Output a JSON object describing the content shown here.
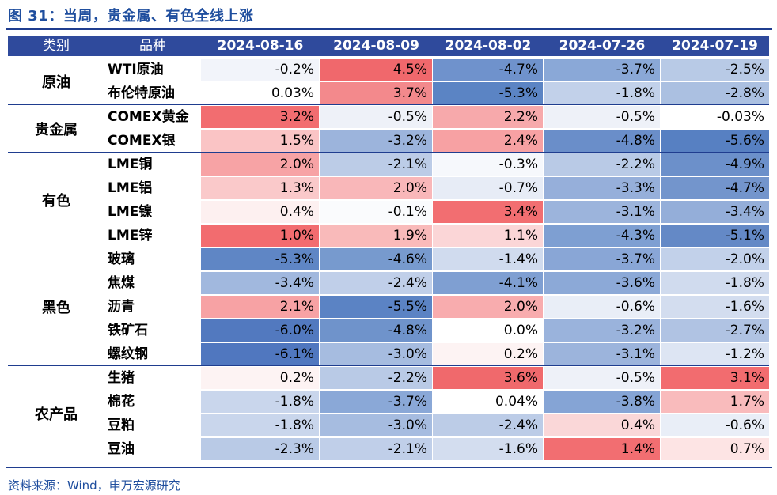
{
  "title": "图 31：当周，贵金属、有色全线上涨",
  "header": {
    "category": "类别",
    "variety": "品种",
    "dates": [
      "2024-08-16",
      "2024-08-09",
      "2024-08-02",
      "2024-07-26",
      "2024-07-19"
    ]
  },
  "groups": [
    {
      "label": "原油",
      "rows": [
        {
          "name": "WTI原油",
          "values": [
            "-0.2%",
            "4.5%",
            "-4.7%",
            "-3.7%",
            "-2.5%"
          ],
          "colors": [
            "#f2f4fa",
            "#f0686c",
            "#6f92cc",
            "#8aa8d7",
            "#b8cae6"
          ]
        },
        {
          "name": "布伦特原油",
          "values": [
            "0.03%",
            "3.7%",
            "-5.3%",
            "-1.8%",
            "-2.8%"
          ],
          "colors": [
            "#ffffff",
            "#f3898c",
            "#5b84c4",
            "#c2d1ea",
            "#abc0e1"
          ]
        }
      ]
    },
    {
      "label": "贵金属",
      "rows": [
        {
          "name": "COMEX黄金",
          "values": [
            "3.2%",
            "-0.5%",
            "2.2%",
            "-0.5%",
            "-0.03%"
          ],
          "colors": [
            "#f26d70",
            "#eef1f8",
            "#f7a9ab",
            "#eef1f8",
            "#ffffff"
          ]
        },
        {
          "name": "COMEX银",
          "values": [
            "1.5%",
            "-3.2%",
            "2.4%",
            "-4.8%",
            "-5.6%"
          ],
          "colors": [
            "#fac4c5",
            "#9cb4dc",
            "#f7a1a3",
            "#6a8ec9",
            "#5780c2"
          ]
        }
      ]
    },
    {
      "label": "有色",
      "rows": [
        {
          "name": "LME铜",
          "values": [
            "2.0%",
            "-2.1%",
            "-0.3%",
            "-2.2%",
            "-4.9%"
          ],
          "colors": [
            "#f7a3a5",
            "#bccce7",
            "#f6f8fc",
            "#b9cae6",
            "#6c90ca"
          ]
        },
        {
          "name": "LME铝",
          "values": [
            "1.3%",
            "2.0%",
            "-0.7%",
            "-3.3%",
            "-4.7%"
          ],
          "colors": [
            "#fac9ca",
            "#f9b7b9",
            "#e7ecf6",
            "#96afda",
            "#7395cc"
          ]
        },
        {
          "name": "LME镍",
          "values": [
            "0.4%",
            "-0.1%",
            "3.4%",
            "-3.1%",
            "-3.4%"
          ],
          "colors": [
            "#fdf0f0",
            "#fafbfd",
            "#f26e71",
            "#9cb4dc",
            "#94aed9"
          ]
        },
        {
          "name": "LME锌",
          "values": [
            "1.0%",
            "1.9%",
            "1.1%",
            "-4.3%",
            "-5.1%"
          ],
          "colors": [
            "#f26c6f",
            "#f9baba",
            "#fbd6d7",
            "#7e9fd2",
            "#6489c6"
          ]
        }
      ]
    },
    {
      "label": "黑色",
      "rows": [
        {
          "name": "玻璃",
          "values": [
            "-5.3%",
            "-4.6%",
            "-1.4%",
            "-3.7%",
            "-2.0%"
          ],
          "colors": [
            "#5f86c5",
            "#779ace",
            "#d0dbee",
            "#89a6d6",
            "#c2d1ea"
          ]
        },
        {
          "name": "焦煤",
          "values": [
            "-3.4%",
            "-2.4%",
            "-4.1%",
            "-3.6%",
            "-1.8%"
          ],
          "colors": [
            "#a1b8de",
            "#c0cfe9",
            "#7f9fd2",
            "#8ca9d7",
            "#d0dbee"
          ]
        },
        {
          "name": "沥青",
          "values": [
            "2.1%",
            "-5.5%",
            "2.0%",
            "-0.6%",
            "-1.6%"
          ],
          "colors": [
            "#f7a2a4",
            "#5b83c4",
            "#f8acae",
            "#e9eef7",
            "#d3ddef"
          ]
        },
        {
          "name": "铁矿石",
          "values": [
            "-6.0%",
            "-4.8%",
            "0.0%",
            "-3.2%",
            "-2.7%"
          ],
          "colors": [
            "#5279bf",
            "#6f93cb",
            "#ffffff",
            "#9ab3dc",
            "#b0c3e3"
          ]
        },
        {
          "name": "螺纹钢",
          "values": [
            "-6.1%",
            "-3.0%",
            "0.2%",
            "-3.1%",
            "-1.2%"
          ],
          "colors": [
            "#5077bf",
            "#a6bce0",
            "#fdf3f3",
            "#9cb4dc",
            "#dde5f3"
          ]
        }
      ]
    },
    {
      "label": "农产品",
      "rows": [
        {
          "name": "生猪",
          "values": [
            "0.2%",
            "-2.2%",
            "3.6%",
            "-0.5%",
            "3.1%"
          ],
          "colors": [
            "#fdf3f3",
            "#b9cae6",
            "#f0696c",
            "#eef1f8",
            "#f26c6f"
          ]
        },
        {
          "name": "棉花",
          "values": [
            "-1.8%",
            "-3.7%",
            "0.04%",
            "-3.8%",
            "1.7%"
          ],
          "colors": [
            "#c9d6ec",
            "#8aa8d7",
            "#ffffff",
            "#85a4d5",
            "#f9bbbc"
          ]
        },
        {
          "name": "豆粕",
          "values": [
            "-1.8%",
            "-3.0%",
            "-2.4%",
            "0.4%",
            "-0.6%"
          ],
          "colors": [
            "#c9d6ec",
            "#a6bce0",
            "#bccce7",
            "#fad7d8",
            "#e9eef7"
          ]
        },
        {
          "name": "豆油",
          "values": [
            "-2.3%",
            "-2.1%",
            "-1.6%",
            "1.4%",
            "0.7%"
          ],
          "colors": [
            "#b9cae6",
            "#c0cfe9",
            "#d3ddef",
            "#f26e71",
            "#fde4e4"
          ]
        }
      ]
    }
  ],
  "source": "资料来源：Wind，申万宏源研究"
}
